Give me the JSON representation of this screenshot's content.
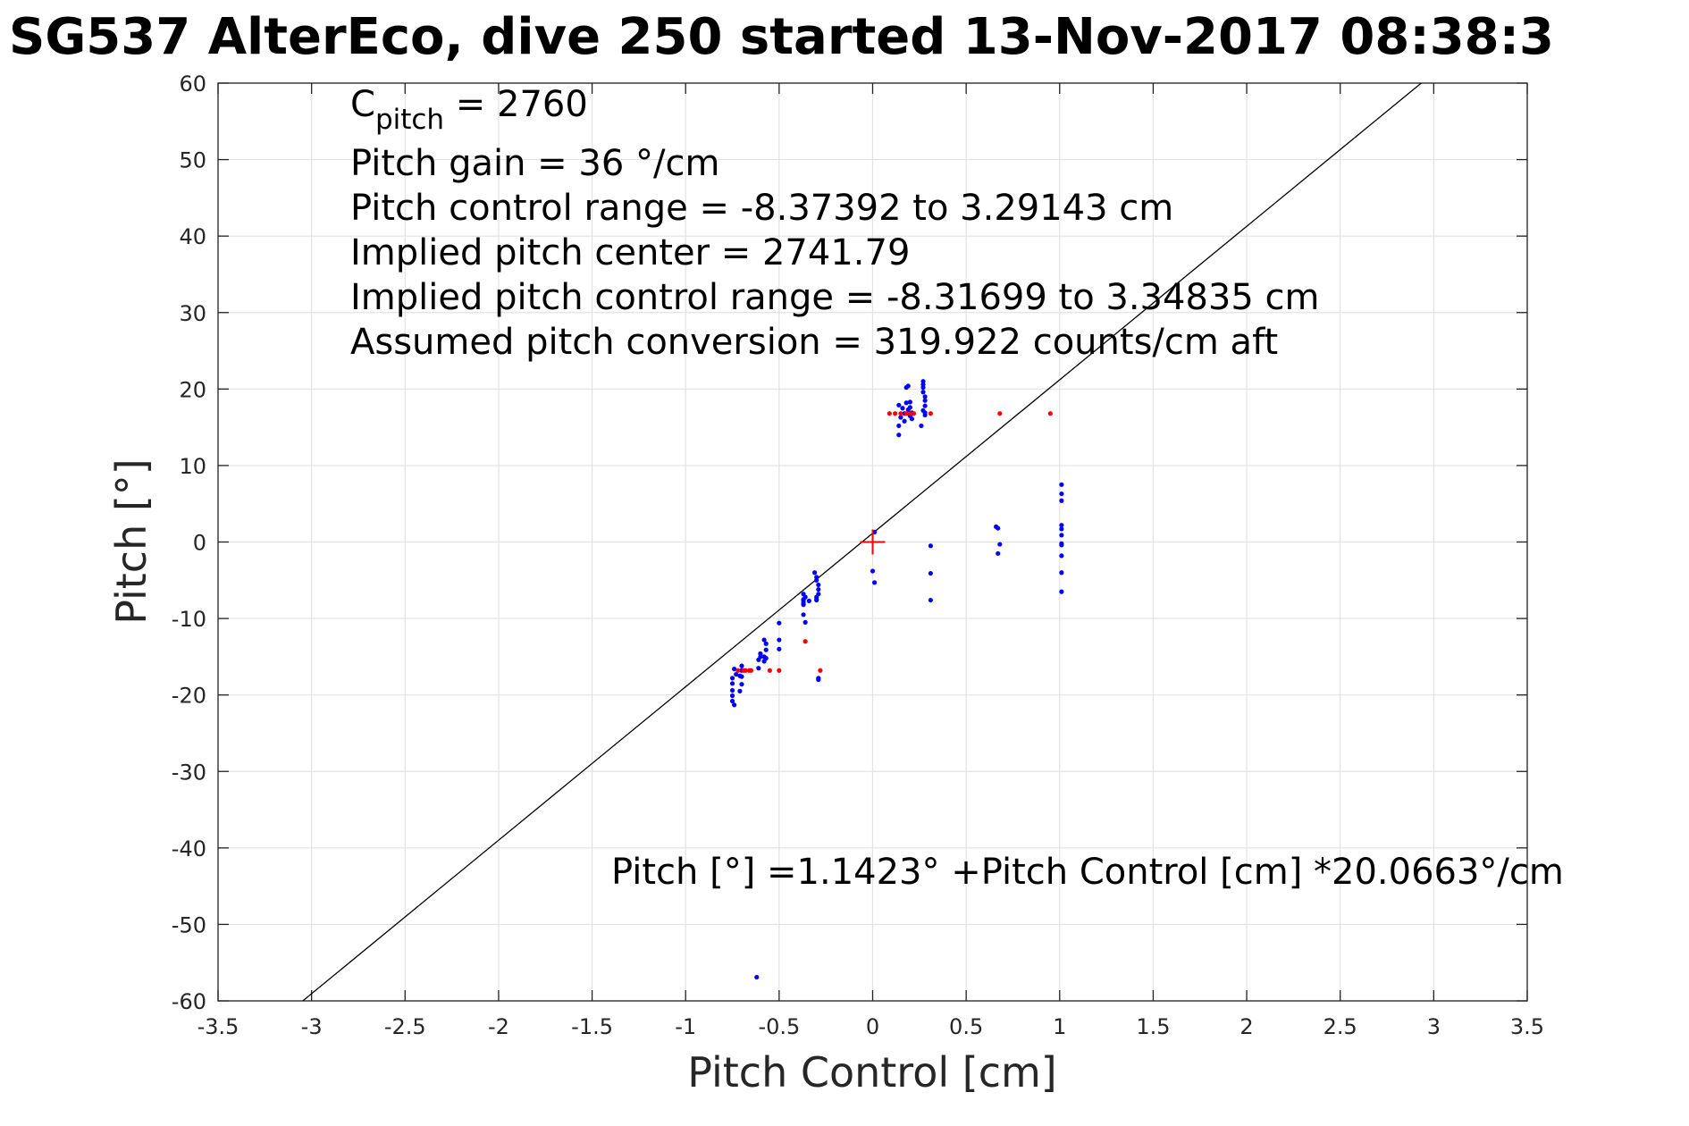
{
  "chart_data": {
    "type": "scatter",
    "title": "SG537 AlterEco, dive 250 started 13-Nov-2017 08:38:3",
    "xlabel": "Pitch Control [cm]",
    "ylabel": "Pitch [°]",
    "xlim": [
      -3.5,
      3.5
    ],
    "ylim": [
      -60,
      60
    ],
    "xticks": [
      -3.5,
      -3,
      -2.5,
      -2,
      -1.5,
      -1,
      -0.5,
      0,
      0.5,
      1,
      1.5,
      2,
      2.5,
      3,
      3.5
    ],
    "xtick_labels": [
      "-3.5",
      "-3",
      "-2.5",
      "-2",
      "-1.5",
      "-1",
      "-0.5",
      "0",
      "0.5",
      "1",
      "1.5",
      "2",
      "2.5",
      "3",
      "3.5"
    ],
    "yticks": [
      -60,
      -50,
      -40,
      -30,
      -20,
      -10,
      0,
      10,
      20,
      30,
      40,
      50,
      60
    ],
    "ytick_labels": [
      "-60",
      "-50",
      "-40",
      "-30",
      "-20",
      "-10",
      "0",
      "10",
      "20",
      "30",
      "40",
      "50",
      "60"
    ],
    "grid": true,
    "annotations": [
      {
        "base": "C",
        "sub": "pitch",
        "text": " = 2760"
      },
      {
        "text": "Pitch gain = 36 °/cm"
      },
      {
        "text": "Pitch control range = -8.37392 to 3.29143 cm"
      },
      {
        "text": "Implied pitch center = 2741.79"
      },
      {
        "text": "Implied pitch control range = -8.31699 to 3.34835 cm"
      },
      {
        "text": "Assumed pitch conversion = 319.922 counts/cm aft"
      }
    ],
    "fit_label": "Pitch [°] =1.1423° +Pitch Control [cm] *20.0663°/cm",
    "fit_line": {
      "intercept": 1.1423,
      "slope": 20.0663,
      "color": "#000000"
    },
    "center_marker": {
      "x": 0,
      "y": 0,
      "color": "#ff0000"
    },
    "series": [
      {
        "color": "#0000ff",
        "x": [
          0.14,
          0.14,
          0.15,
          0.16,
          0.17,
          0.18,
          0.18,
          0.19,
          0.2,
          0.2,
          0.2,
          0.21,
          0.21,
          0.19,
          0.17,
          0.14,
          0.27,
          0.27,
          0.27,
          0.27,
          0.28,
          0.28,
          0.28,
          0.28,
          0.27,
          0.26,
          0.28,
          0.01,
          0.0,
          0.01,
          0.31,
          0.31,
          0.31,
          0.66,
          0.67,
          0.68,
          0.67,
          1.01,
          1.01,
          1.01,
          1.01,
          1.01,
          1.01,
          1.01,
          1.01,
          1.01,
          1.01,
          1.01,
          -0.37,
          -0.37,
          -0.37,
          -0.37,
          -0.36,
          -0.36,
          -0.37,
          -0.37,
          -0.34,
          -0.31,
          -0.3,
          -0.3,
          -0.29,
          -0.29,
          -0.29,
          -0.3,
          -0.3,
          -0.29,
          -0.29,
          -0.3,
          -0.5,
          -0.5,
          -0.5,
          -0.57,
          -0.57,
          -0.57,
          -0.58,
          -0.58,
          -0.58,
          -0.6,
          -0.6,
          -0.61,
          -0.62,
          -0.7,
          -0.7,
          -0.7,
          -0.7,
          -0.71,
          -0.71,
          -0.73,
          -0.74,
          -0.75,
          -0.75,
          -0.75,
          -0.75,
          -0.75,
          -0.74,
          -0.61
        ],
        "y": [
          15.2,
          14.0,
          16.3,
          17.5,
          15.8,
          20.2,
          18.2,
          20.4,
          18.3,
          17.6,
          16.5,
          16.9,
          16.1,
          17.3,
          16.8,
          17.9,
          21.0,
          20.6,
          20.2,
          19.6,
          19.0,
          18.5,
          17.8,
          16.9,
          17.2,
          15.2,
          16.6,
          1.3,
          -3.8,
          -5.3,
          -0.5,
          -4.1,
          -7.6,
          2.0,
          1.8,
          -0.3,
          -1.5,
          7.5,
          6.3,
          5.4,
          2.2,
          1.7,
          0.9,
          -0.2,
          -0.4,
          -1.8,
          -4.0,
          -6.5,
          -6.8,
          -7.5,
          -8.2,
          -9.5,
          -10.5,
          -7.2,
          -8.0,
          -7.7,
          -7.7,
          -4.0,
          -4.6,
          -5.0,
          -5.6,
          -6.2,
          -6.8,
          -7.2,
          -7.6,
          -17.8,
          -18.0,
          -7.5,
          -10.6,
          -12.8,
          -14.0,
          -13.3,
          -14.1,
          -15.2,
          -15.0,
          -15.6,
          -12.8,
          -14.6,
          -15.0,
          -16.5,
          -56.9,
          -16.2,
          -16.8,
          -17.6,
          -18.6,
          -19.5,
          -17.5,
          -17.3,
          -16.6,
          -17.8,
          -18.5,
          -19.4,
          -20.1,
          -20.8,
          -21.3,
          -15.4
        ]
      },
      {
        "color": "#ff0000",
        "x": [
          0.09,
          0.12,
          0.15,
          0.18,
          0.2,
          0.22,
          0.31,
          0.68,
          0.95,
          -0.36,
          -0.28,
          -0.5,
          -0.55,
          -0.65,
          -0.66,
          -0.68,
          -0.69,
          -0.72
        ],
        "y": [
          16.8,
          16.8,
          16.8,
          16.8,
          16.8,
          16.8,
          16.8,
          16.8,
          16.8,
          -13.0,
          -16.8,
          -16.8,
          -16.8,
          -16.8,
          -16.8,
          -16.8,
          -16.8,
          -16.8
        ]
      }
    ]
  }
}
